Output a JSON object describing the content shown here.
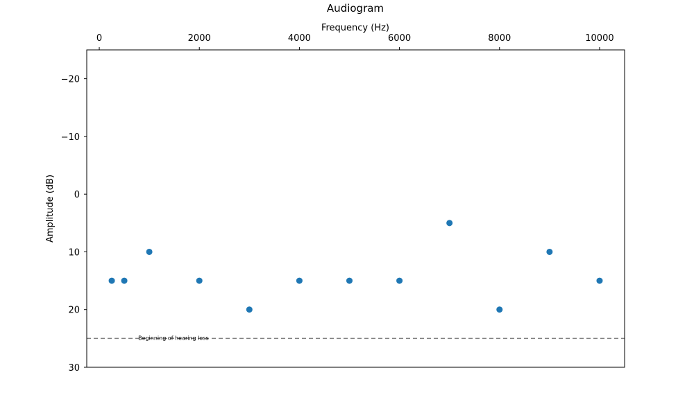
{
  "chart_data": {
    "type": "scatter",
    "title": "Audiogram",
    "xlabel": "Frequency (Hz)",
    "ylabel": "Amplitude (dB)",
    "xlim": [
      -250,
      10500
    ],
    "ylim": [
      30,
      -25
    ],
    "y_inverted": true,
    "x_axis_position": "top",
    "grid": false,
    "x_ticks": [
      0,
      2000,
      4000,
      6000,
      8000,
      10000
    ],
    "y_ticks": [
      -20,
      -10,
      0,
      10,
      20,
      30
    ],
    "x_tick_labels": [
      "0",
      "2000",
      "4000",
      "6000",
      "8000",
      "10000"
    ],
    "y_tick_labels": [
      "−20",
      "−10",
      "0",
      "10",
      "20",
      "30"
    ],
    "marker_color": "#1f77b4",
    "points": [
      {
        "x": 250,
        "y": 15
      },
      {
        "x": 500,
        "y": 15
      },
      {
        "x": 1000,
        "y": 10
      },
      {
        "x": 2000,
        "y": 15
      },
      {
        "x": 3000,
        "y": 20
      },
      {
        "x": 4000,
        "y": 15
      },
      {
        "x": 5000,
        "y": 15
      },
      {
        "x": 6000,
        "y": 15
      },
      {
        "x": 7000,
        "y": 5
      },
      {
        "x": 8000,
        "y": 20
      },
      {
        "x": 9000,
        "y": 10
      },
      {
        "x": 10000,
        "y": 15
      }
    ],
    "reference_line": {
      "y": 25,
      "style": "dashed",
      "color": "#808080",
      "label": "Beginning of hearing loss"
    }
  }
}
